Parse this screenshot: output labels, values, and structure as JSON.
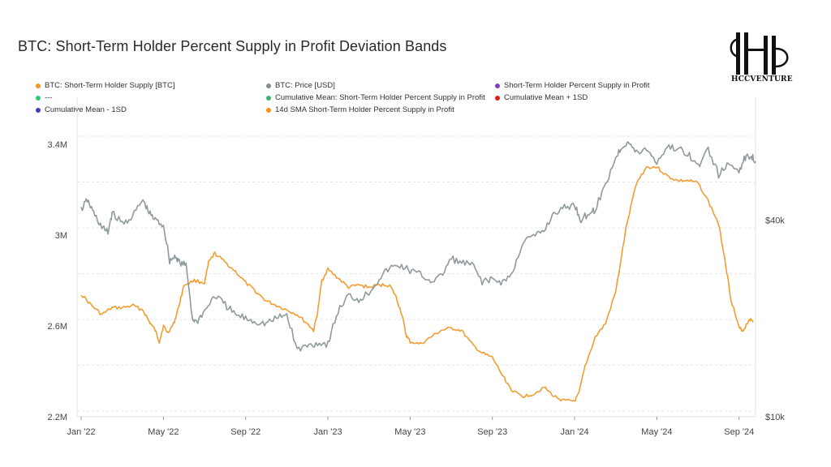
{
  "title": "BTC: Short-Term Holder Percent Supply in Profit Deviation Bands",
  "logo": {
    "text": "HCCVENTURE"
  },
  "legend": [
    {
      "label": "BTC: Short-Term Holder Supply [BTC]",
      "color": "#f7931a"
    },
    {
      "label": "BTC: Price [USD]",
      "color": "#7f8c8d"
    },
    {
      "label": "Short-Term Holder Percent Supply in Profit",
      "color": "#7b3fc6"
    },
    {
      "label": "---",
      "color": "#2ecc71"
    },
    {
      "label": "Cumulative Mean: Short-Term Holder Percent Supply in Profit",
      "color": "#3cb371"
    },
    {
      "label": "Cumulative Mean + 1SD",
      "color": "#e0201a"
    },
    {
      "label": "Cumulative Mean - 1SD",
      "color": "#3a3fbf"
    },
    {
      "label": "14d SMA Short-Term Holder Percent Supply in Profit",
      "color": "#f7931a"
    }
  ],
  "chart_data": {
    "type": "line",
    "x_ticks": [
      "Jan '22",
      "May '22",
      "Sep '22",
      "Jan '23",
      "May '23",
      "Sep '23",
      "Jan '24",
      "May '24",
      "Sep '24"
    ],
    "x_tick_months": [
      0,
      4,
      8,
      12,
      16,
      20,
      24,
      28,
      32
    ],
    "x_range_months": [
      -0.2,
      32.8
    ],
    "y_left": {
      "ticks": [
        "2.2M",
        "2.6M",
        "3M",
        "3.4M"
      ],
      "tick_values": [
        2.2,
        2.6,
        3.0,
        3.4
      ],
      "range": [
        2.2,
        3.5
      ],
      "unit": "M BTC"
    },
    "y_right": {
      "ticks": [
        "$10k",
        "$40k"
      ],
      "tick_values": [
        10000,
        40000
      ],
      "range": [
        10000,
        80000
      ],
      "scale": "log"
    },
    "series": [
      {
        "name": "BTC: Short-Term Holder Supply [BTC]",
        "color": "#f7931a",
        "axis": "left",
        "points": [
          [
            0,
            2.74
          ],
          [
            0.5,
            2.69
          ],
          [
            1,
            2.65
          ],
          [
            1.5,
            2.68
          ],
          [
            2,
            2.68
          ],
          [
            2.5,
            2.69
          ],
          [
            3,
            2.67
          ],
          [
            3.3,
            2.62
          ],
          [
            3.6,
            2.58
          ],
          [
            3.8,
            2.53
          ],
          [
            4,
            2.6
          ],
          [
            4.2,
            2.57
          ],
          [
            4.5,
            2.61
          ],
          [
            4.7,
            2.67
          ],
          [
            5,
            2.78
          ],
          [
            5.5,
            2.8
          ],
          [
            6,
            2.79
          ],
          [
            6.2,
            2.88
          ],
          [
            6.5,
            2.92
          ],
          [
            7,
            2.88
          ],
          [
            7.5,
            2.84
          ],
          [
            8,
            2.79
          ],
          [
            8.5,
            2.75
          ],
          [
            9,
            2.71
          ],
          [
            9.5,
            2.69
          ],
          [
            10,
            2.67
          ],
          [
            10.5,
            2.65
          ],
          [
            11,
            2.61
          ],
          [
            11.3,
            2.58
          ],
          [
            11.5,
            2.66
          ],
          [
            11.7,
            2.8
          ],
          [
            12,
            2.85
          ],
          [
            12.5,
            2.81
          ],
          [
            13,
            2.77
          ],
          [
            13.5,
            2.78
          ],
          [
            14,
            2.77
          ],
          [
            14.5,
            2.78
          ],
          [
            15,
            2.78
          ],
          [
            15.3,
            2.73
          ],
          [
            15.6,
            2.65
          ],
          [
            15.8,
            2.56
          ],
          [
            16,
            2.53
          ],
          [
            16.5,
            2.52
          ],
          [
            17,
            2.55
          ],
          [
            17.5,
            2.58
          ],
          [
            18,
            2.59
          ],
          [
            18.5,
            2.58
          ],
          [
            19,
            2.52
          ],
          [
            19.5,
            2.48
          ],
          [
            20,
            2.46
          ],
          [
            20.5,
            2.38
          ],
          [
            21,
            2.31
          ],
          [
            21.5,
            2.29
          ],
          [
            22,
            2.3
          ],
          [
            22.5,
            2.33
          ],
          [
            23,
            2.29
          ],
          [
            23.5,
            2.27
          ],
          [
            24,
            2.27
          ],
          [
            24.2,
            2.3
          ],
          [
            24.5,
            2.42
          ],
          [
            25,
            2.55
          ],
          [
            25.5,
            2.61
          ],
          [
            26,
            2.75
          ],
          [
            26.5,
            3.03
          ],
          [
            27,
            3.23
          ],
          [
            27.5,
            3.3
          ],
          [
            28,
            3.3
          ],
          [
            28.5,
            3.26
          ],
          [
            29,
            3.24
          ],
          [
            29.5,
            3.24
          ],
          [
            30,
            3.23
          ],
          [
            30.5,
            3.15
          ],
          [
            31,
            3.05
          ],
          [
            31.3,
            2.9
          ],
          [
            31.6,
            2.72
          ],
          [
            32,
            2.59
          ],
          [
            32.2,
            2.58
          ],
          [
            32.5,
            2.63
          ],
          [
            32.7,
            2.62
          ]
        ]
      },
      {
        "name": "BTC: Price [USD]",
        "color": "#7f8c8d",
        "axis": "right",
        "points": [
          [
            0,
            43000
          ],
          [
            0.3,
            46000
          ],
          [
            0.6,
            42000
          ],
          [
            1,
            38000
          ],
          [
            1.3,
            36500
          ],
          [
            1.5,
            42000
          ],
          [
            2,
            39000
          ],
          [
            2.5,
            41000
          ],
          [
            3,
            46000
          ],
          [
            3.3,
            42000
          ],
          [
            3.6,
            40000
          ],
          [
            4,
            38500
          ],
          [
            4.3,
            30000
          ],
          [
            4.6,
            31000
          ],
          [
            4.8,
            29500
          ],
          [
            5.1,
            29000
          ],
          [
            5.4,
            20000
          ],
          [
            5.6,
            19500
          ],
          [
            6,
            21000
          ],
          [
            6.5,
            23500
          ],
          [
            7,
            22000
          ],
          [
            7.5,
            20500
          ],
          [
            8,
            20000
          ],
          [
            8.5,
            19500
          ],
          [
            9,
            19300
          ],
          [
            9.5,
            20000
          ],
          [
            10,
            20500
          ],
          [
            10.5,
            16000
          ],
          [
            11,
            16500
          ],
          [
            11.5,
            16800
          ],
          [
            12,
            16700
          ],
          [
            12.5,
            21000
          ],
          [
            13,
            23500
          ],
          [
            13.5,
            22800
          ],
          [
            14,
            24000
          ],
          [
            14.5,
            26500
          ],
          [
            15,
            28500
          ],
          [
            15.5,
            29000
          ],
          [
            16,
            28000
          ],
          [
            16.5,
            27200
          ],
          [
            17,
            26000
          ],
          [
            17.5,
            26800
          ],
          [
            18,
            30500
          ],
          [
            18.5,
            29500
          ],
          [
            19,
            29200
          ],
          [
            19.5,
            26000
          ],
          [
            20,
            26200
          ],
          [
            20.5,
            25800
          ],
          [
            21,
            27500
          ],
          [
            21.5,
            34500
          ],
          [
            22,
            35500
          ],
          [
            22.5,
            37000
          ],
          [
            23,
            42000
          ],
          [
            23.5,
            43500
          ],
          [
            24,
            44500
          ],
          [
            24.3,
            40000
          ],
          [
            24.7,
            42000
          ],
          [
            25,
            43000
          ],
          [
            25.5,
            51000
          ],
          [
            26,
            62000
          ],
          [
            26.3,
            67000
          ],
          [
            26.6,
            69500
          ],
          [
            27,
            64000
          ],
          [
            27.5,
            66000
          ],
          [
            28,
            60000
          ],
          [
            28.5,
            67000
          ],
          [
            29,
            66000
          ],
          [
            29.5,
            64000
          ],
          [
            30,
            58000
          ],
          [
            30.5,
            66000
          ],
          [
            31,
            55000
          ],
          [
            31.5,
            59000
          ],
          [
            32,
            57000
          ],
          [
            32.3,
            62000
          ],
          [
            32.6,
            63000
          ],
          [
            32.8,
            60500
          ]
        ]
      }
    ],
    "grid": "horizontal dashed",
    "legend_position": "top"
  }
}
